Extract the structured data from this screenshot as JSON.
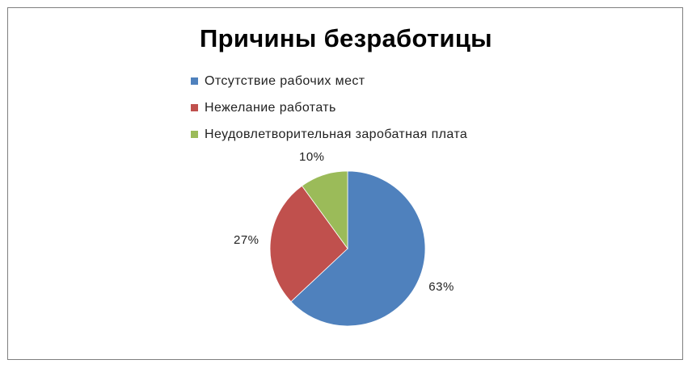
{
  "chart_data": {
    "type": "pie",
    "title": "Причины безработицы",
    "legend_position": "top",
    "slices": [
      {
        "label": "Отсутствие рабочих мест",
        "value": 63,
        "value_label": "63%",
        "color": "#4f81bd"
      },
      {
        "label": "Нежелание работать",
        "value": 27,
        "value_label": "27%",
        "color": "#c0504d"
      },
      {
        "label": "Неудовлетворительная заробатная плата",
        "value": 10,
        "value_label": "10%",
        "color": "#9bbb59"
      }
    ]
  }
}
